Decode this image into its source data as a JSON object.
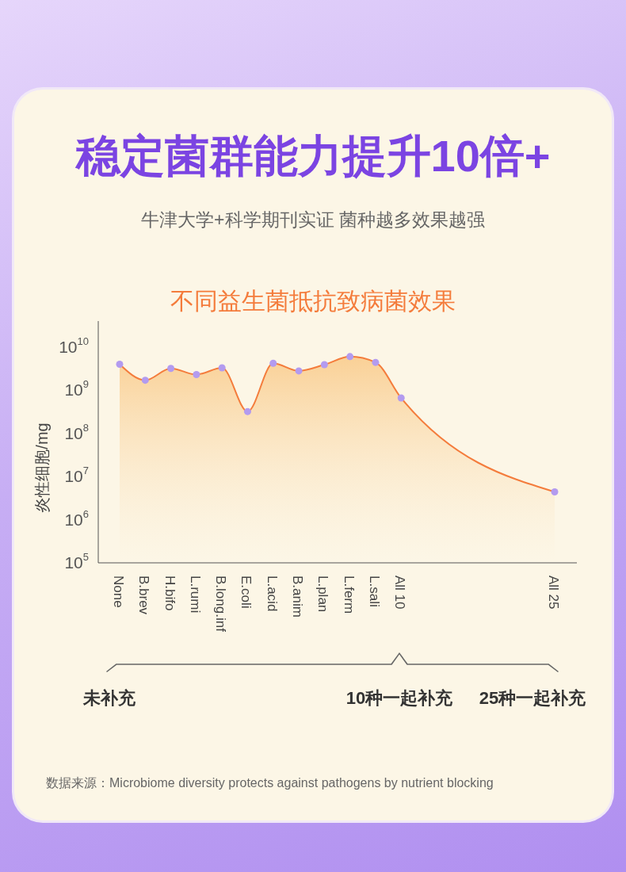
{
  "chart_data": {
    "type": "area",
    "title": "稳定菌群能力提升10倍+",
    "subtitle": "牛津大学+科学期刊实证 菌种越多效果越强",
    "ylabel": "炎性细胞/mg",
    "categories": [
      "None",
      "B.brev",
      "H.bifo",
      "L.rumi",
      "B.long.inf",
      "E.coli",
      "L.acid",
      "B.anim",
      "L.plan",
      "L.ferm",
      "L.sali",
      "All 10",
      null,
      null,
      null,
      null,
      null,
      "All 25"
    ],
    "series": [
      {
        "color": "#f47c3c",
        "values": [
          4000000000,
          1700000000,
          3200000000,
          2300000000,
          3300000000,
          320000000,
          4200000000,
          2800000000,
          3900000000,
          6000000000,
          4400000000,
          660000000,
          null,
          null,
          null,
          null,
          null,
          4400000
        ]
      }
    ],
    "log": "y",
    "ylim": [
      100000,
      40000000000
    ],
    "yticks": [
      {
        "value": 100000,
        "label": "10$^{5}$"
      },
      {
        "value": 1000000,
        "label": "10$^{6}$"
      },
      {
        "value": 10000000,
        "label": "10$^{7}$"
      },
      {
        "value": 100000000,
        "label": "10$^{8}$"
      },
      {
        "value": 1000000000,
        "label": "10$^{9}$"
      },
      {
        "value": 10000000000,
        "label": "10$^{10}$"
      }
    ],
    "grid": false,
    "legend": false,
    "marker": "circle",
    "annotations": [
      "不同益生菌抵抗致病菌效果",
      "未补充",
      "10种一起补充",
      "25种一起补充",
      "数据来源：Microbiome diversity protects against pathogens by nutrient blocking"
    ]
  }
}
